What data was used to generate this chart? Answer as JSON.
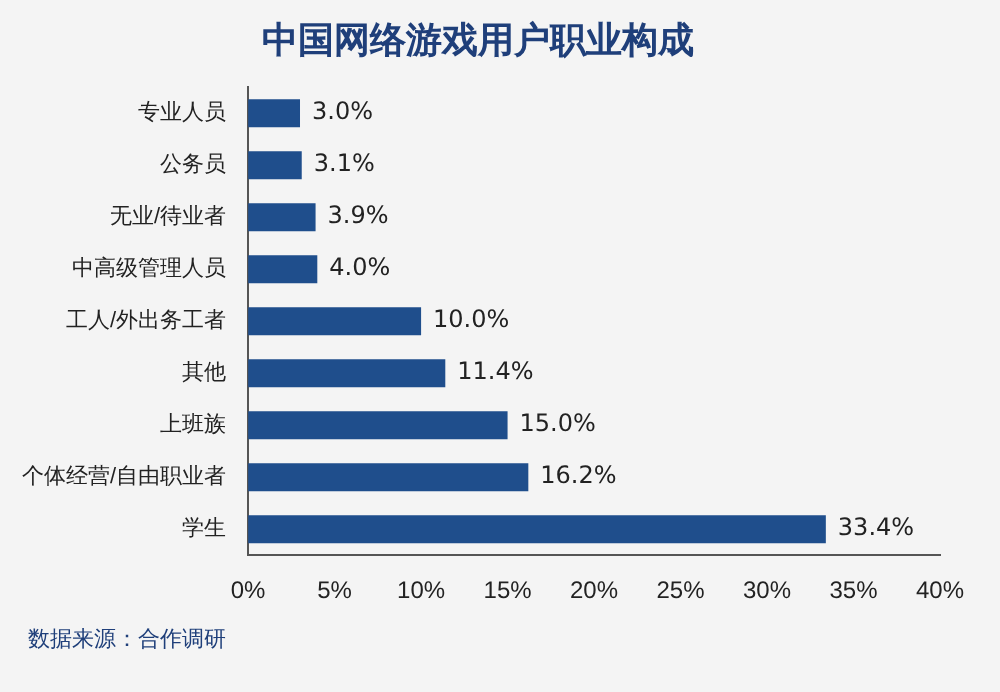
{
  "chart_data": {
    "type": "bar",
    "orientation": "horizontal",
    "title": "中国网络游戏用户职业构成",
    "categories": [
      "专业人员",
      "公务员",
      "无业/待业者",
      "中高级管理人员",
      "工人/外出务工者",
      "其他",
      "上班族",
      "个体经营/自由职业者",
      "学生"
    ],
    "values": [
      3.0,
      3.1,
      3.9,
      4.0,
      10.0,
      11.4,
      15.0,
      16.2,
      33.4
    ],
    "value_labels": [
      "3.0%",
      "3.1%",
      "3.9%",
      "4.0%",
      "10.0%",
      "11.4%",
      "15.0%",
      "16.2%",
      "33.4%"
    ],
    "color": "#1f4e8c",
    "xlim": [
      0,
      40
    ],
    "xticks": [
      {
        "value": 0,
        "label": "0%"
      },
      {
        "value": 5,
        "label": "5%"
      },
      {
        "value": 10,
        "label": "10%"
      },
      {
        "value": 15,
        "label": "15%"
      },
      {
        "value": 20,
        "label": "20%"
      },
      {
        "value": 25,
        "label": "25%"
      },
      {
        "value": 30,
        "label": "30%"
      },
      {
        "value": 35,
        "label": "35%"
      },
      {
        "value": 40,
        "label": "40%"
      }
    ],
    "grid": false,
    "legend": false,
    "annotations": [
      "数据来源：合作调研"
    ]
  }
}
